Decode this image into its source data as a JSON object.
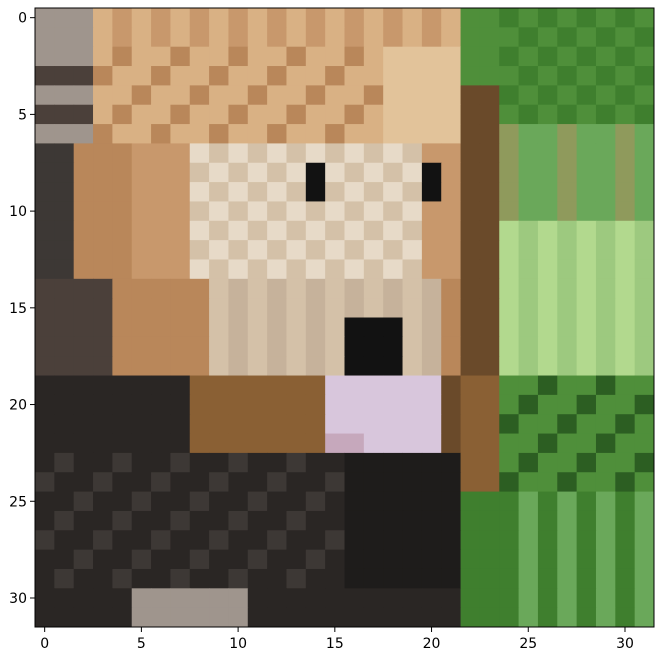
{
  "chart_data": {
    "type": "heatmap",
    "title": "",
    "xlabel": "",
    "ylabel": "",
    "grid": false,
    "image_grid_size": [
      32,
      32
    ],
    "xlim": [
      -0.5,
      31.5
    ],
    "ylim": [
      31.5,
      -0.5
    ],
    "x_ticks": [
      0,
      5,
      10,
      15,
      20,
      25,
      30
    ],
    "y_ticks": [
      0,
      5,
      10,
      15,
      20,
      25,
      30
    ],
    "x_tick_labels": [
      "0",
      "5",
      "10",
      "15",
      "20",
      "25",
      "30"
    ],
    "y_tick_labels": [
      "0",
      "5",
      "10",
      "15",
      "20",
      "25",
      "30"
    ],
    "description_colors": {
      "mane_tan": "#caa57a",
      "face_light": "#d8c8b0",
      "nose_pink": "#d6c6d6",
      "fur_dark": "#2d2a28",
      "foliage_green": "#5f9b4a",
      "foliage_light": "#95c57a"
    }
  }
}
